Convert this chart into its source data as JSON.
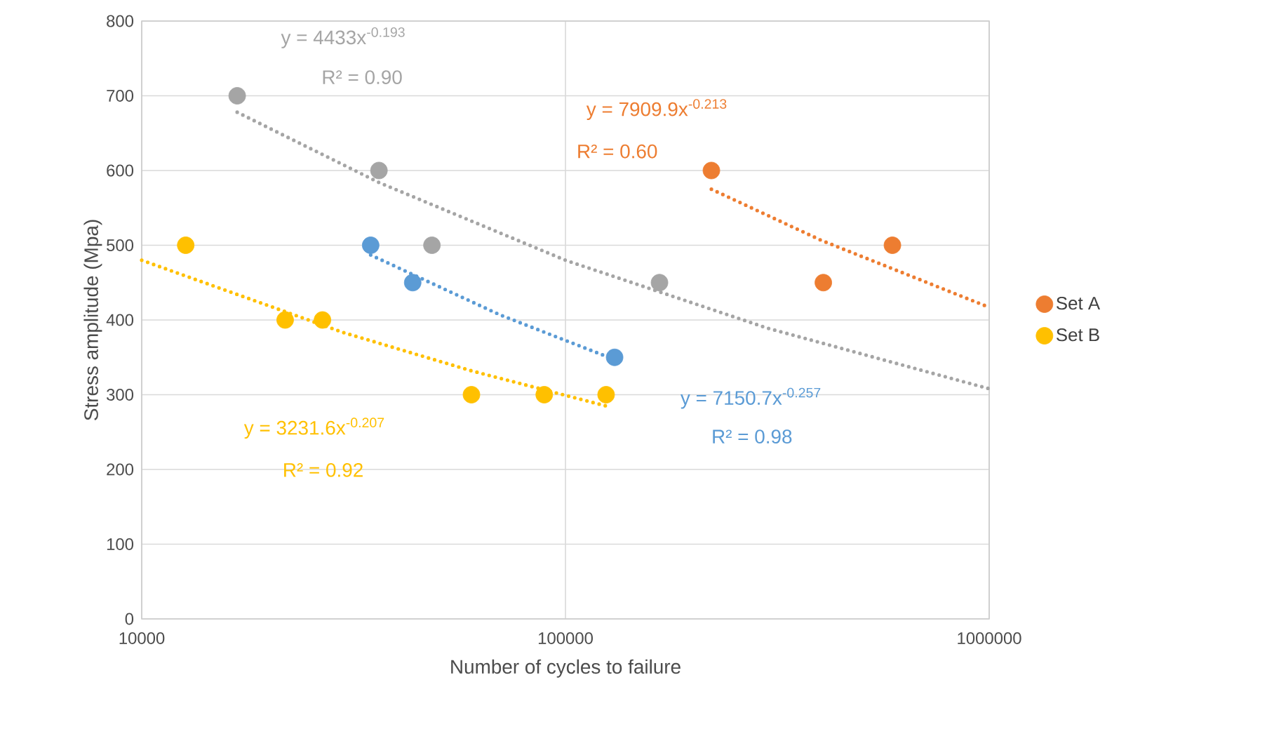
{
  "chart_data": {
    "type": "scatter",
    "xlabel": "Number of cycles to failure",
    "ylabel": "Stress amplitude (Mpa)",
    "log": "x",
    "grid": true,
    "legend": "right",
    "xlim": [
      10000,
      1000000
    ],
    "xticks": [
      10000,
      100000,
      1000000
    ],
    "ylim": [
      0,
      800
    ],
    "yticks": [
      0,
      100,
      200,
      300,
      400,
      500,
      600,
      700,
      800
    ],
    "series": [
      {
        "name": "Set A",
        "color": "#ed7d31",
        "marker": "circle",
        "x": [
          221000,
          406000,
          591000
        ],
        "values": [
          600,
          450,
          500
        ]
      },
      {
        "name": "Set B",
        "color": "#ffc000",
        "marker": "circle",
        "x": [
          12700,
          21800,
          26700,
          60000,
          89100,
          124700
        ],
        "values": [
          500,
          400,
          400,
          300,
          300,
          300
        ]
      },
      {
        "color": "#a5a5a5",
        "marker": "circle",
        "x": [
          16800,
          36300,
          48400,
          166700
        ],
        "values": [
          700,
          600,
          500,
          450
        ]
      },
      {
        "color": "#5b9bd5",
        "marker": "circle",
        "x": [
          34700,
          43600,
          130600
        ],
        "values": [
          500,
          450,
          350
        ]
      },
      {
        "type": "line",
        "color": "#ed7d31",
        "marker": "none",
        "line_style": "dotted",
        "x": [
          221000,
          400000,
          1000000
        ],
        "values": [
          575,
          507,
          417
        ]
      },
      {
        "type": "line",
        "color": "#ffc000",
        "marker": "none",
        "line_style": "dotted",
        "x": [
          10000,
          30000,
          60000,
          124700
        ],
        "values": [
          480,
          383,
          332,
          285
        ]
      },
      {
        "type": "line",
        "color": "#a5a5a5",
        "marker": "none",
        "line_style": "dotted",
        "x": [
          16800,
          36300,
          100000,
          300000,
          1000000
        ],
        "values": [
          678,
          584,
          480,
          389,
          308
        ]
      },
      {
        "type": "line",
        "color": "#5b9bd5",
        "marker": "none",
        "line_style": "dotted",
        "x": [
          34700,
          70000,
          130600
        ],
        "values": [
          487,
          407,
          347
        ]
      }
    ],
    "annotations": [
      "y = 4433x$^{-0.193}$",
      "R² = 0.90",
      "y = 7909.9x$^{-0.213}$",
      "R² = 0.60",
      "y = 3231.6x$^{-0.207}$",
      "R² = 0.92",
      "y = 7150.7x$^{-0.257}$",
      "R² = 0.98"
    ]
  }
}
